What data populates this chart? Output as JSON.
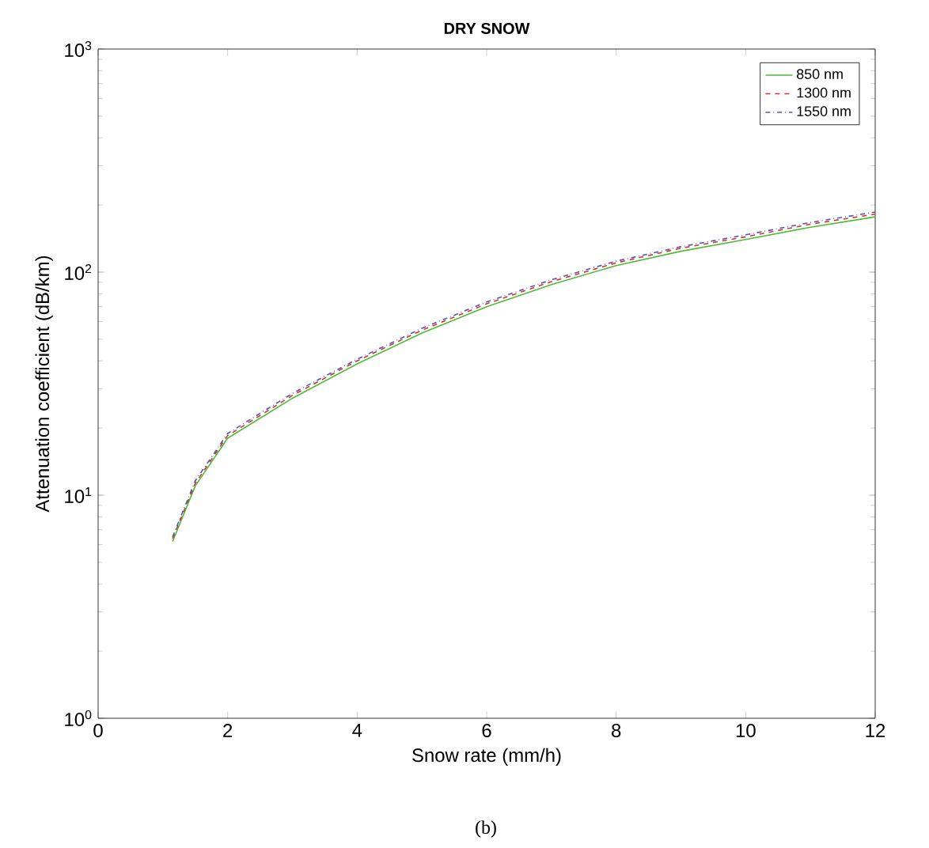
{
  "chart_data": {
    "type": "line",
    "title": "DRY SNOW",
    "xlabel": "Snow rate (mm/h)",
    "ylabel": "Attenuation coefficient (dB/km)",
    "annotations": [
      "(b)"
    ],
    "log": "y",
    "xlim": [
      0,
      12
    ],
    "ylim": [
      1,
      1000
    ],
    "xticks": [
      0,
      2,
      4,
      6,
      8,
      10,
      12
    ],
    "yticks": [
      {
        "value": 1,
        "label": "10$^{0}$"
      },
      {
        "value": 10,
        "label": "10$^{1}$"
      },
      {
        "value": 100,
        "label": "10$^{2}$"
      },
      {
        "value": 1000,
        "label": "10$^{3}$"
      }
    ],
    "x": [
      1.15,
      1.5,
      2,
      3,
      4,
      5,
      6,
      7,
      8,
      9,
      10,
      11,
      12
    ],
    "legend": "top right",
    "grid": false,
    "series": [
      {
        "name": "850 nm",
        "color": "#4dbd33",
        "line_style": "solid",
        "values": [
          6.2,
          11.0,
          18.0,
          27.2,
          38.8,
          53.3,
          70.0,
          88,
          107,
          124,
          140,
          159,
          177
        ]
      },
      {
        "name": "1300 nm",
        "color": "#cc3344",
        "line_style": "dashed",
        "values": [
          6.4,
          11.3,
          18.5,
          28.0,
          40.0,
          54.9,
          72.1,
          90.6,
          110,
          128,
          144,
          164,
          182
        ]
      },
      {
        "name": "1550 nm",
        "color": "#5555aa",
        "line_style": "dashdot",
        "values": [
          6.5,
          11.6,
          18.9,
          28.6,
          40.7,
          56.0,
          73.5,
          92.4,
          112,
          130,
          147,
          167,
          186
        ]
      }
    ]
  }
}
